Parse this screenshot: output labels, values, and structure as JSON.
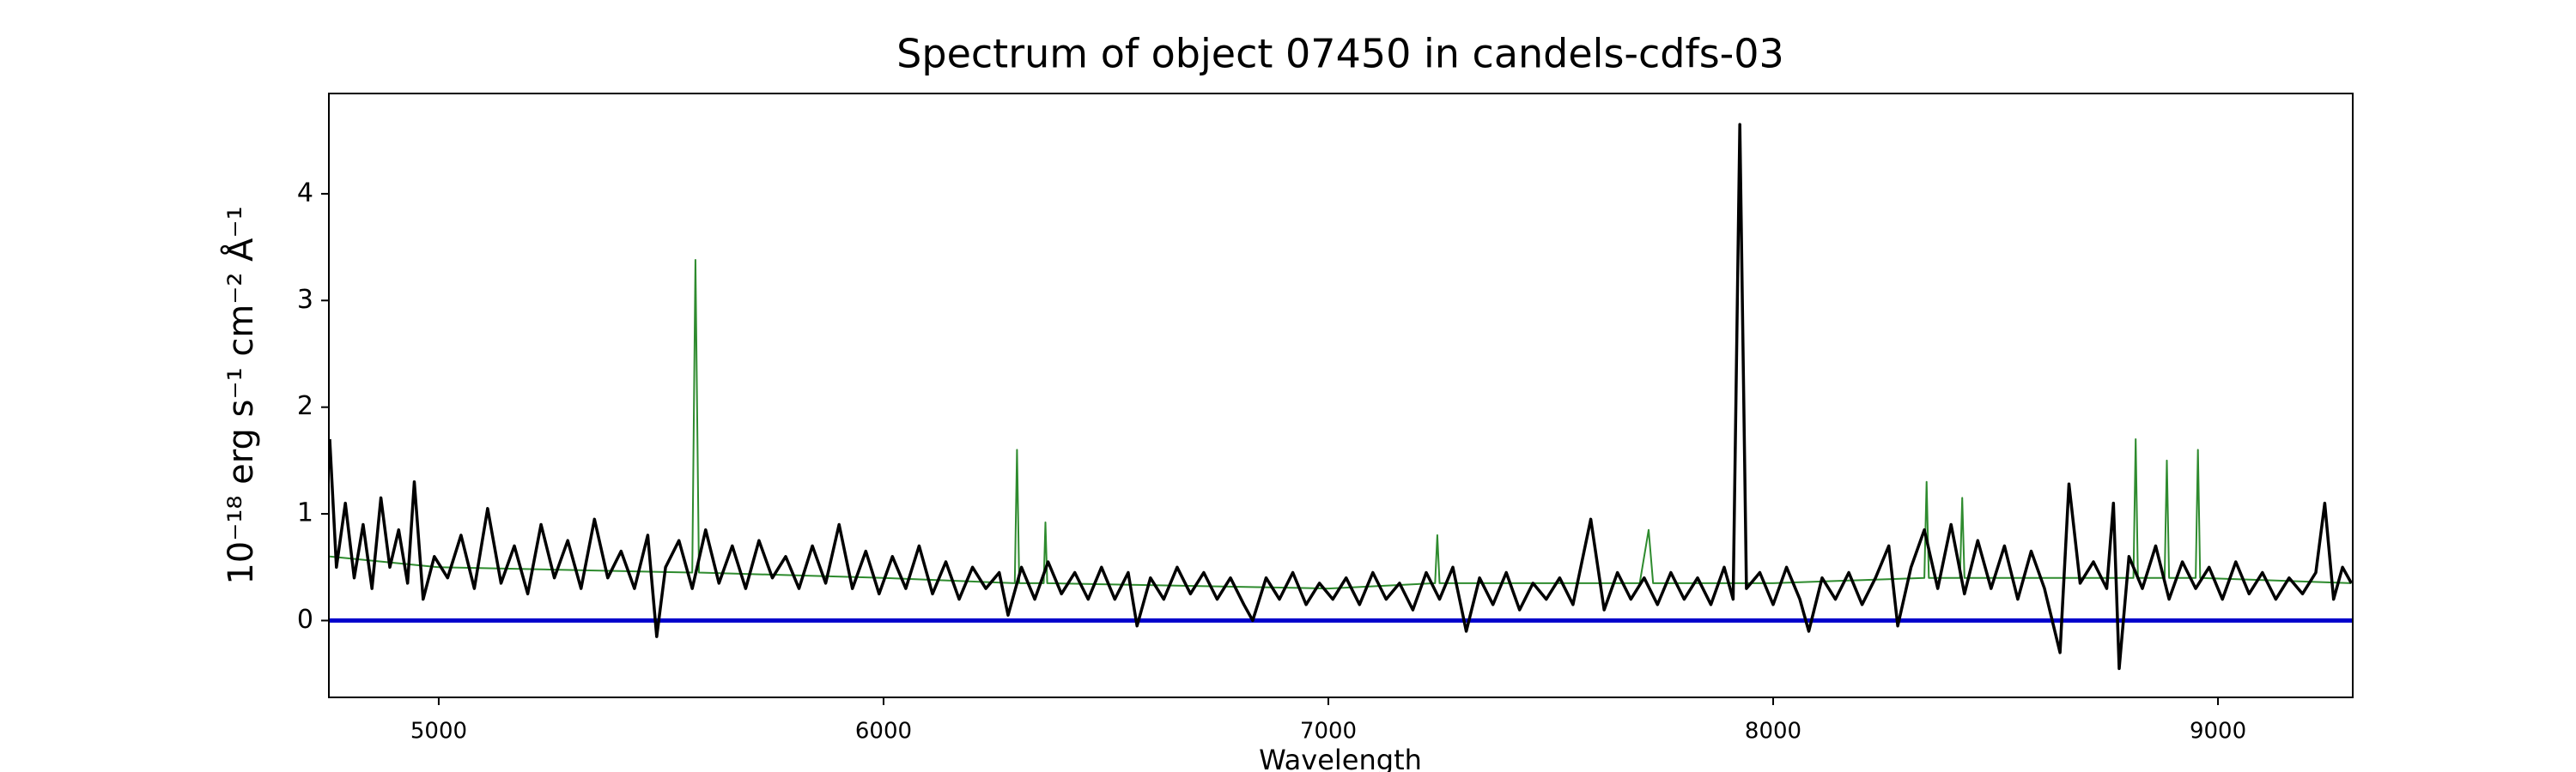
{
  "chart_data": {
    "type": "line",
    "title": "Spectrum of object 07450 in candels-cdfs-03",
    "xlabel": "Wavelength",
    "ylabel": "10⁻¹⁸ erg s⁻¹ cm⁻² Å⁻¹",
    "xlim": [
      4753,
      9303
    ],
    "xticks": [
      5000,
      6000,
      7000,
      8000,
      9000
    ],
    "ylim": [
      -0.72,
      4.94
    ],
    "yticks": [
      0,
      1,
      2,
      3,
      4
    ],
    "grid": false,
    "series": [
      {
        "color": "#2e8b2e",
        "width": 2,
        "x": [
          4755,
          5000,
          5570,
          5577,
          5585,
          6000,
          6295,
          6300,
          6305,
          6360,
          6364,
          6368,
          7000,
          7240,
          7245,
          7250,
          7700,
          7720,
          7730,
          8000,
          8340,
          8345,
          8350,
          8420,
          8425,
          8430,
          8810,
          8815,
          8820,
          8880,
          8885,
          8890,
          8950,
          8955,
          8960,
          9300
        ],
        "values": [
          0.6,
          0.5,
          0.45,
          3.38,
          0.45,
          0.4,
          0.35,
          1.6,
          0.35,
          0.35,
          0.92,
          0.35,
          0.3,
          0.35,
          0.8,
          0.35,
          0.35,
          0.85,
          0.35,
          0.35,
          0.4,
          1.3,
          0.4,
          0.4,
          1.15,
          0.4,
          0.4,
          1.7,
          0.4,
          0.4,
          1.5,
          0.4,
          0.4,
          1.6,
          0.4,
          0.35
        ]
      },
      {
        "color": "#0000cc",
        "width": 5,
        "x": [
          4753,
          9303
        ],
        "values": [
          0,
          0
        ]
      },
      {
        "color": "#000000",
        "width": 3.5,
        "x": [
          4755,
          4770,
          4790,
          4810,
          4830,
          4850,
          4870,
          4890,
          4910,
          4930,
          4945,
          4965,
          4990,
          5020,
          5050,
          5080,
          5110,
          5140,
          5170,
          5200,
          5230,
          5260,
          5290,
          5320,
          5350,
          5380,
          5410,
          5440,
          5470,
          5490,
          5510,
          5540,
          5570,
          5600,
          5630,
          5660,
          5690,
          5720,
          5750,
          5780,
          5810,
          5840,
          5870,
          5900,
          5930,
          5960,
          5990,
          6020,
          6050,
          6080,
          6110,
          6140,
          6170,
          6200,
          6230,
          6260,
          6280,
          6310,
          6340,
          6370,
          6400,
          6430,
          6460,
          6490,
          6520,
          6550,
          6570,
          6600,
          6630,
          6660,
          6690,
          6720,
          6750,
          6780,
          6810,
          6830,
          6860,
          6890,
          6920,
          6950,
          6980,
          7010,
          7040,
          7070,
          7100,
          7130,
          7160,
          7190,
          7220,
          7250,
          7280,
          7310,
          7340,
          7370,
          7400,
          7430,
          7460,
          7490,
          7520,
          7550,
          7590,
          7620,
          7650,
          7680,
          7710,
          7740,
          7770,
          7800,
          7830,
          7860,
          7890,
          7910,
          7925,
          7940,
          7970,
          8000,
          8030,
          8060,
          8080,
          8110,
          8140,
          8170,
          8200,
          8230,
          8260,
          8280,
          8310,
          8340,
          8370,
          8400,
          8430,
          8460,
          8490,
          8520,
          8550,
          8580,
          8610,
          8645,
          8665,
          8690,
          8720,
          8750,
          8765,
          8778,
          8800,
          8830,
          8860,
          8890,
          8920,
          8950,
          8980,
          9010,
          9040,
          9070,
          9100,
          9130,
          9160,
          9190,
          9220,
          9240,
          9260,
          9280,
          9300
        ],
        "values": [
          1.7,
          0.5,
          1.1,
          0.4,
          0.9,
          0.3,
          1.15,
          0.5,
          0.85,
          0.35,
          1.3,
          0.2,
          0.6,
          0.4,
          0.8,
          0.3,
          1.05,
          0.35,
          0.7,
          0.25,
          0.9,
          0.4,
          0.75,
          0.3,
          0.95,
          0.4,
          0.65,
          0.3,
          0.8,
          -0.15,
          0.5,
          0.75,
          0.3,
          0.85,
          0.35,
          0.7,
          0.3,
          0.75,
          0.4,
          0.6,
          0.3,
          0.7,
          0.35,
          0.9,
          0.3,
          0.65,
          0.25,
          0.6,
          0.3,
          0.7,
          0.25,
          0.55,
          0.2,
          0.5,
          0.3,
          0.45,
          0.05,
          0.5,
          0.2,
          0.55,
          0.25,
          0.45,
          0.2,
          0.5,
          0.2,
          0.45,
          -0.05,
          0.4,
          0.2,
          0.5,
          0.25,
          0.45,
          0.2,
          0.4,
          0.15,
          0.0,
          0.4,
          0.2,
          0.45,
          0.15,
          0.35,
          0.2,
          0.4,
          0.15,
          0.45,
          0.2,
          0.35,
          0.1,
          0.45,
          0.2,
          0.5,
          -0.1,
          0.4,
          0.15,
          0.45,
          0.1,
          0.35,
          0.2,
          0.4,
          0.15,
          0.95,
          0.1,
          0.45,
          0.2,
          0.4,
          0.15,
          0.45,
          0.2,
          0.4,
          0.15,
          0.5,
          0.2,
          4.65,
          0.3,
          0.45,
          0.15,
          0.5,
          0.2,
          -0.1,
          0.4,
          0.2,
          0.45,
          0.15,
          0.4,
          0.7,
          -0.05,
          0.5,
          0.85,
          0.3,
          0.9,
          0.25,
          0.75,
          0.3,
          0.7,
          0.2,
          0.65,
          0.3,
          -0.3,
          1.28,
          0.35,
          0.55,
          0.3,
          1.1,
          -0.45,
          0.6,
          0.3,
          0.7,
          0.2,
          0.55,
          0.3,
          0.5,
          0.2,
          0.55,
          0.25,
          0.45,
          0.2,
          0.4,
          0.25,
          0.45,
          1.1,
          0.2,
          0.5,
          0.35
        ]
      }
    ]
  }
}
